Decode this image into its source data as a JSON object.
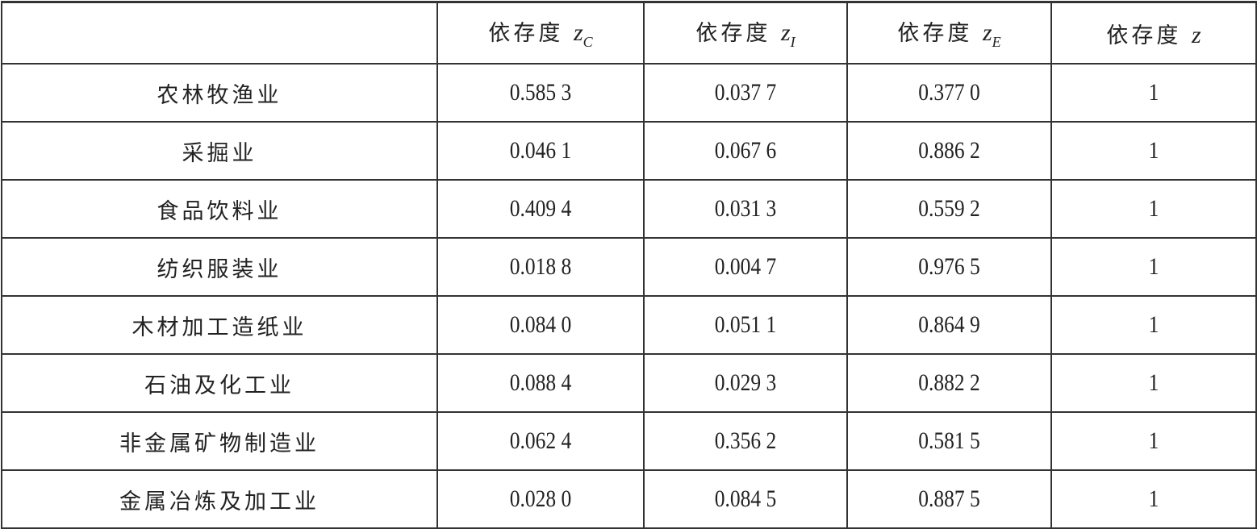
{
  "table": {
    "headers": [
      {
        "label": "",
        "var": "",
        "sub": ""
      },
      {
        "label": "依存度",
        "var": "z",
        "sub": "C"
      },
      {
        "label": "依存度",
        "var": "z",
        "sub": "I"
      },
      {
        "label": "依存度",
        "var": "z",
        "sub": "E"
      },
      {
        "label": "依存度",
        "var": "z",
        "sub": ""
      }
    ],
    "rows": [
      {
        "industry": "农林牧渔业",
        "zc": "0.585 3",
        "zi": "0.037 7",
        "ze": "0.377 0",
        "z": "1"
      },
      {
        "industry": "采掘业",
        "zc": "0.046 1",
        "zi": "0.067 6",
        "ze": "0.886 2",
        "z": "1"
      },
      {
        "industry": "食品饮料业",
        "zc": "0.409 4",
        "zi": "0.031 3",
        "ze": "0.559 2",
        "z": "1"
      },
      {
        "industry": "纺织服装业",
        "zc": "0.018 8",
        "zi": "0.004 7",
        "ze": "0.976 5",
        "z": "1"
      },
      {
        "industry": "木材加工造纸业",
        "zc": "0.084 0",
        "zi": "0.051 1",
        "ze": "0.864 9",
        "z": "1"
      },
      {
        "industry": "石油及化工业",
        "zc": "0.088 4",
        "zi": "0.029 3",
        "ze": "0.882 2",
        "z": "1"
      },
      {
        "industry": "非金属矿物制造业",
        "zc": "0.062 4",
        "zi": "0.356 2",
        "ze": "0.581 5",
        "z": "1"
      },
      {
        "industry": "金属冶炼及加工业",
        "zc": "0.028 0",
        "zi": "0.084 5",
        "ze": "0.887 5",
        "z": "1"
      }
    ]
  }
}
